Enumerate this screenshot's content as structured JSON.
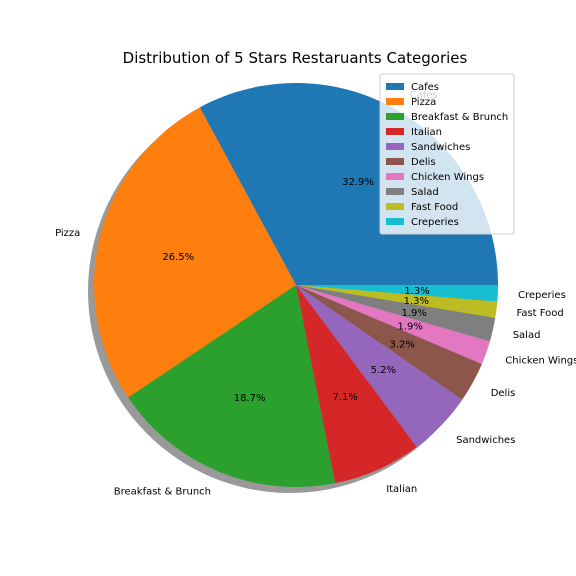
{
  "chart_data": {
    "type": "pie",
    "title": "Distribution of 5 Stars Restaruants Categories",
    "start_angle_deg": 0,
    "direction": "counterclockwise",
    "shadow": true,
    "legend": "top-right",
    "slices": [
      {
        "label": "Cafes",
        "value": 32.9,
        "pct_text": "32.9%",
        "color": "#1f77b4"
      },
      {
        "label": "Pizza",
        "value": 26.5,
        "pct_text": "26.5%",
        "color": "#ff7f0e"
      },
      {
        "label": "Breakfast & Brunch",
        "value": 18.7,
        "pct_text": "18.7%",
        "color": "#2ca02c"
      },
      {
        "label": "Italian",
        "value": 7.1,
        "pct_text": "7.1%",
        "color": "#d62728"
      },
      {
        "label": "Sandwiches",
        "value": 5.2,
        "pct_text": "5.2%",
        "color": "#9467bd"
      },
      {
        "label": "Delis",
        "value": 3.2,
        "pct_text": "3.2%",
        "color": "#8c564b"
      },
      {
        "label": "Chicken Wings",
        "value": 1.9,
        "pct_text": "1.9%",
        "color": "#e377c2"
      },
      {
        "label": "Salad",
        "value": 1.9,
        "pct_text": "1.9%",
        "color": "#7f7f7f"
      },
      {
        "label": "Fast Food",
        "value": 1.3,
        "pct_text": "1.3%",
        "color": "#bcbd22"
      },
      {
        "label": "Creperies",
        "value": 1.3,
        "pct_text": "1.3%",
        "color": "#17becf"
      }
    ]
  }
}
